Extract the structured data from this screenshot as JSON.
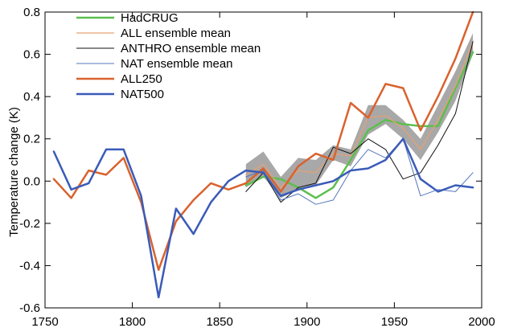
{
  "chart_data": {
    "type": "line",
    "title": "",
    "xlabel": "",
    "ylabel": "Temperature change (K)",
    "xlim": [
      1750,
      2000
    ],
    "ylim": [
      -0.6,
      0.8
    ],
    "xticks": [
      1750,
      1800,
      1850,
      1900,
      1950,
      2000
    ],
    "yticks": [
      -0.6,
      -0.4,
      -0.2,
      0.0,
      0.2,
      0.4,
      0.6,
      0.8
    ],
    "ytick_labels": [
      "-0.6",
      "-0.4",
      "-0.2",
      "0.0",
      "0.2",
      "0.4",
      "0.6",
      "0.8"
    ],
    "grid": false,
    "legend_position": "top-left",
    "band": {
      "color": "#a8a8a8",
      "x": [
        1865,
        1875,
        1885,
        1895,
        1905,
        1915,
        1925,
        1935,
        1945,
        1955,
        1965,
        1975,
        1985,
        1995
      ],
      "upper": [
        0.08,
        0.14,
        0.02,
        0.11,
        0.1,
        0.17,
        0.15,
        0.36,
        0.36,
        0.29,
        0.2,
        0.36,
        0.52,
        0.7
      ],
      "lower": [
        -0.03,
        0.02,
        -0.08,
        -0.04,
        -0.02,
        0.1,
        0.07,
        0.22,
        0.27,
        0.2,
        0.1,
        0.23,
        0.38,
        0.6
      ]
    },
    "series": [
      {
        "name": "HadCRUG",
        "color": "#5cbf4e",
        "width": 2.5,
        "x": [
          1865,
          1875,
          1885,
          1895,
          1905,
          1915,
          1925,
          1935,
          1945,
          1955,
          1965,
          1975,
          1985,
          1995
        ],
        "y": [
          -0.02,
          0.02,
          0.01,
          -0.03,
          -0.08,
          -0.03,
          0.1,
          0.24,
          0.29,
          0.27,
          0.26,
          0.26,
          0.44,
          0.61
        ]
      },
      {
        "name": "ALL ensemble mean",
        "color": "#e8a070",
        "width": 1.2,
        "x": [
          1865,
          1875,
          1885,
          1895,
          1905,
          1915,
          1925,
          1935,
          1945,
          1955,
          1965,
          1975,
          1985,
          1995
        ],
        "y": [
          0.03,
          0.08,
          -0.03,
          0.05,
          0.04,
          0.13,
          0.12,
          0.3,
          0.31,
          0.25,
          0.15,
          0.29,
          0.45,
          0.66
        ]
      },
      {
        "name": "ANTHRO ensemble mean",
        "color": "#111111",
        "width": 1.0,
        "x": [
          1865,
          1875,
          1885,
          1895,
          1905,
          1915,
          1925,
          1935,
          1945,
          1955,
          1965,
          1975,
          1985,
          1995
        ],
        "y": [
          -0.05,
          0.04,
          -0.1,
          -0.03,
          -0.01,
          0.16,
          0.13,
          0.2,
          0.15,
          0.01,
          0.04,
          0.17,
          0.32,
          0.66
        ]
      },
      {
        "name": "NAT ensemble mean",
        "color": "#5577bb",
        "width": 1.0,
        "x": [
          1865,
          1875,
          1885,
          1895,
          1905,
          1915,
          1925,
          1935,
          1945,
          1955,
          1965,
          1975,
          1985,
          1995
        ],
        "y": [
          0.02,
          0.05,
          -0.09,
          -0.06,
          -0.11,
          -0.09,
          0.05,
          0.15,
          0.11,
          0.2,
          -0.07,
          -0.04,
          -0.05,
          0.04
        ]
      },
      {
        "name": "ALL250",
        "color": "#d9622f",
        "width": 2.5,
        "x": [
          1755,
          1765,
          1775,
          1785,
          1795,
          1805,
          1815,
          1825,
          1835,
          1845,
          1855,
          1865,
          1875,
          1885,
          1895,
          1905,
          1915,
          1925,
          1935,
          1945,
          1955,
          1965,
          1975,
          1985,
          1995
        ],
        "y": [
          0.01,
          -0.08,
          0.05,
          0.03,
          0.11,
          -0.1,
          -0.42,
          -0.19,
          -0.09,
          -0.01,
          -0.04,
          -0.01,
          0.06,
          -0.05,
          0.07,
          0.13,
          0.1,
          0.37,
          0.3,
          0.46,
          0.44,
          0.24,
          0.4,
          0.58,
          0.8
        ]
      },
      {
        "name": "NAT500",
        "color": "#3a5bb8",
        "width": 2.5,
        "x": [
          1755,
          1765,
          1775,
          1785,
          1795,
          1805,
          1815,
          1825,
          1835,
          1845,
          1855,
          1865,
          1875,
          1885,
          1895,
          1905,
          1915,
          1925,
          1935,
          1945,
          1955,
          1965,
          1975,
          1985,
          1995
        ],
        "y": [
          0.14,
          -0.04,
          -0.01,
          0.15,
          0.15,
          -0.07,
          -0.55,
          -0.13,
          -0.25,
          -0.1,
          0.0,
          0.05,
          0.04,
          -0.07,
          -0.04,
          -0.02,
          0.0,
          0.05,
          0.06,
          0.1,
          0.2,
          0.01,
          -0.05,
          -0.02,
          -0.03
        ]
      }
    ]
  }
}
